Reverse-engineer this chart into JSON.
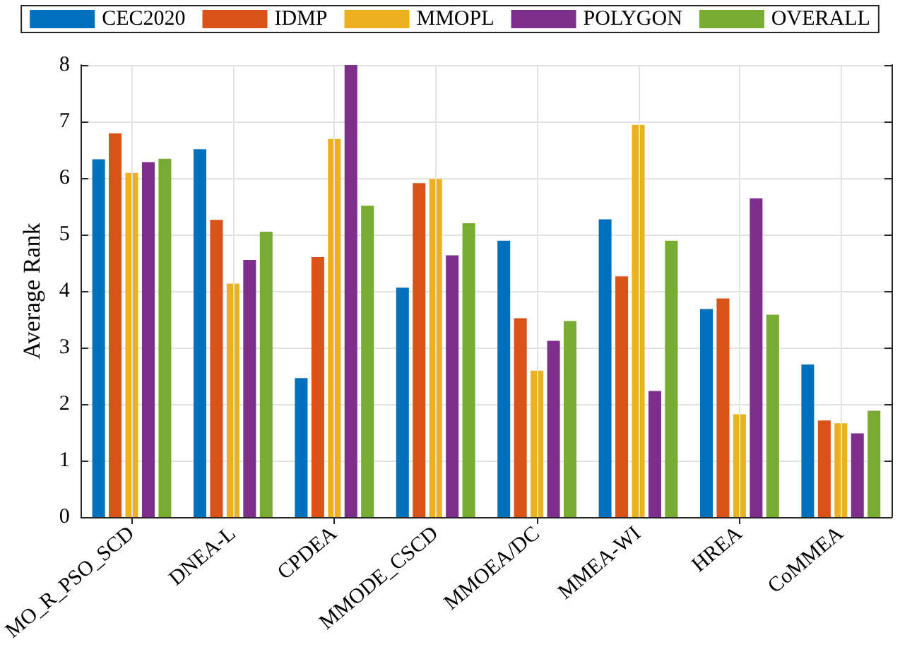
{
  "chart_data": {
    "type": "bar",
    "ylabel": "Average Rank",
    "categories": [
      "MO_R_PSO_SCD",
      "DNEA-L",
      "CPDEA",
      "MMODE_CSCD",
      "MMOEA/DC",
      "MMEA-WI",
      "HREA",
      "CoMMEA"
    ],
    "series": [
      {
        "name": "CEC2020",
        "color": "#0072bd",
        "values": [
          6.33,
          6.51,
          2.46,
          4.06,
          4.89,
          5.27,
          3.68,
          2.7
        ]
      },
      {
        "name": "IDMP",
        "color": "#d95319",
        "values": [
          6.79,
          5.26,
          4.6,
          5.91,
          3.52,
          4.26,
          3.87,
          1.71
        ]
      },
      {
        "name": "MMOPL",
        "color": "#edb120",
        "values": [
          6.09,
          4.13,
          6.69,
          5.98,
          2.59,
          6.94,
          1.82,
          1.66
        ]
      },
      {
        "name": "POLYGON",
        "color": "#7e2f8e",
        "values": [
          6.28,
          4.55,
          8.0,
          4.63,
          3.12,
          2.23,
          5.64,
          1.48
        ]
      },
      {
        "name": "OVERALL",
        "color": "#77ac30",
        "values": [
          6.34,
          5.05,
          5.51,
          5.2,
          3.47,
          4.89,
          3.58,
          1.88
        ]
      }
    ],
    "ylim": [
      0,
      8
    ],
    "yticks": [
      0,
      1,
      2,
      3,
      4,
      5,
      6,
      7,
      8
    ],
    "grid": true,
    "legend": "top"
  }
}
